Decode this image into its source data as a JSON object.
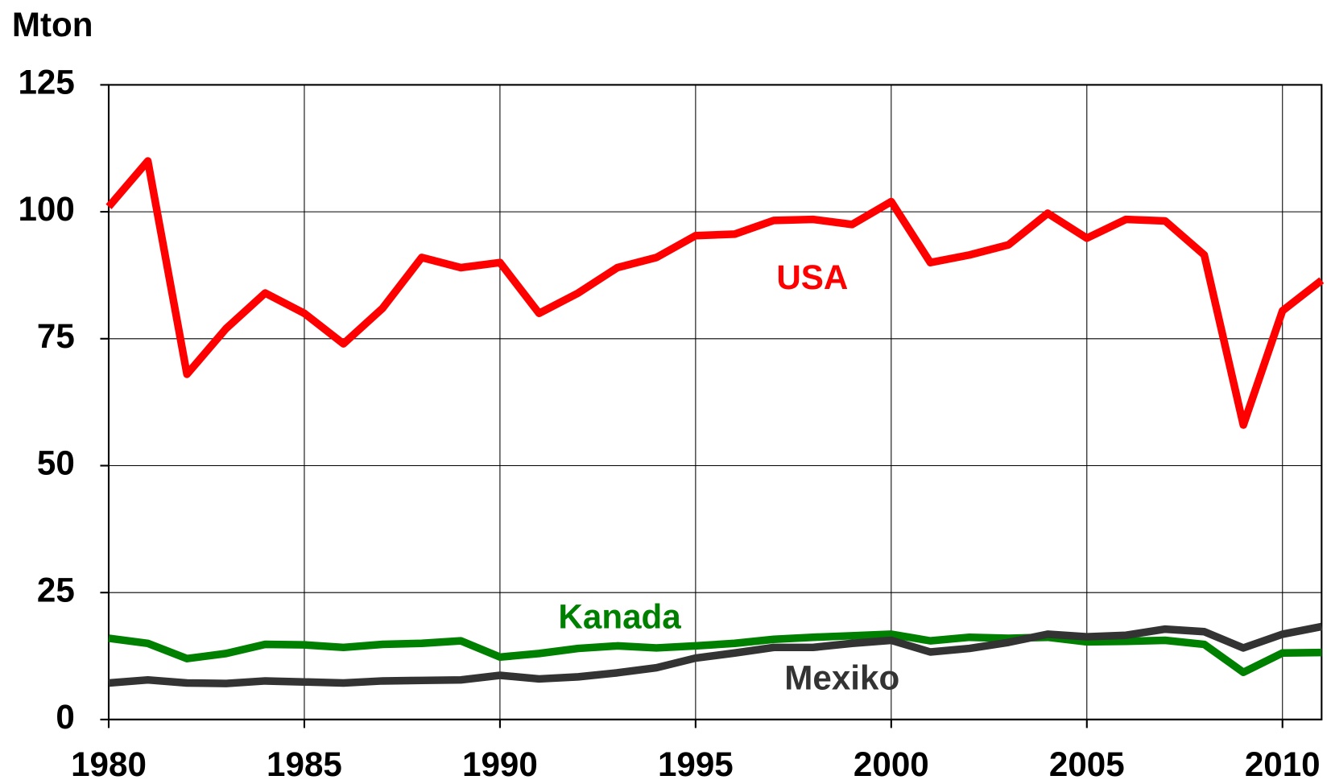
{
  "chart_data": {
    "type": "line",
    "y_label": "Mton",
    "x": [
      1980,
      1981,
      1982,
      1983,
      1984,
      1985,
      1986,
      1987,
      1988,
      1989,
      1990,
      1991,
      1992,
      1993,
      1994,
      1995,
      1996,
      1997,
      1998,
      1999,
      2000,
      2001,
      2002,
      2003,
      2004,
      2005,
      2006,
      2007,
      2008,
      2009,
      2010,
      2011
    ],
    "series": [
      {
        "name": "USA",
        "color": "#ff0000",
        "values": [
          101,
          110,
          68,
          77,
          84,
          80,
          74,
          81,
          91,
          89,
          90,
          80,
          84,
          89,
          91,
          95.3,
          95.6,
          98.3,
          98.5,
          97.5,
          102,
          90,
          91.5,
          93.5,
          99.7,
          94.8,
          98.5,
          98.2,
          91.5,
          58,
          80.5,
          86.5
        ]
      },
      {
        "name": "Kanada",
        "color": "#008000",
        "values": [
          16,
          15,
          12,
          13,
          14.8,
          14.7,
          14.2,
          14.8,
          15,
          15.5,
          12.3,
          13,
          14,
          14.5,
          14.1,
          14.5,
          15,
          15.8,
          16.2,
          16.5,
          16.8,
          15.5,
          16.2,
          16,
          16.2,
          15.3,
          15.4,
          15.6,
          14.8,
          9.3,
          13.1,
          13.2
        ]
      },
      {
        "name": "Mexiko",
        "color": "#333333",
        "values": [
          7.2,
          7.8,
          7.2,
          7.1,
          7.6,
          7.4,
          7.2,
          7.6,
          7.7,
          7.8,
          8.7,
          8,
          8.4,
          9.2,
          10.2,
          12.1,
          13.1,
          14.2,
          14.2,
          15,
          15.6,
          13.3,
          14,
          15.2,
          16.8,
          16.3,
          16.6,
          17.8,
          17.3,
          14.1,
          16.8,
          18.3
        ]
      }
    ],
    "xlim": [
      1980,
      2011
    ],
    "xticks": [
      1980,
      1985,
      1990,
      1995,
      2000,
      2005,
      2010
    ],
    "ylim": [
      0,
      125
    ],
    "yticks": [
      0,
      25,
      50,
      75,
      100,
      125
    ],
    "grid": true
  }
}
